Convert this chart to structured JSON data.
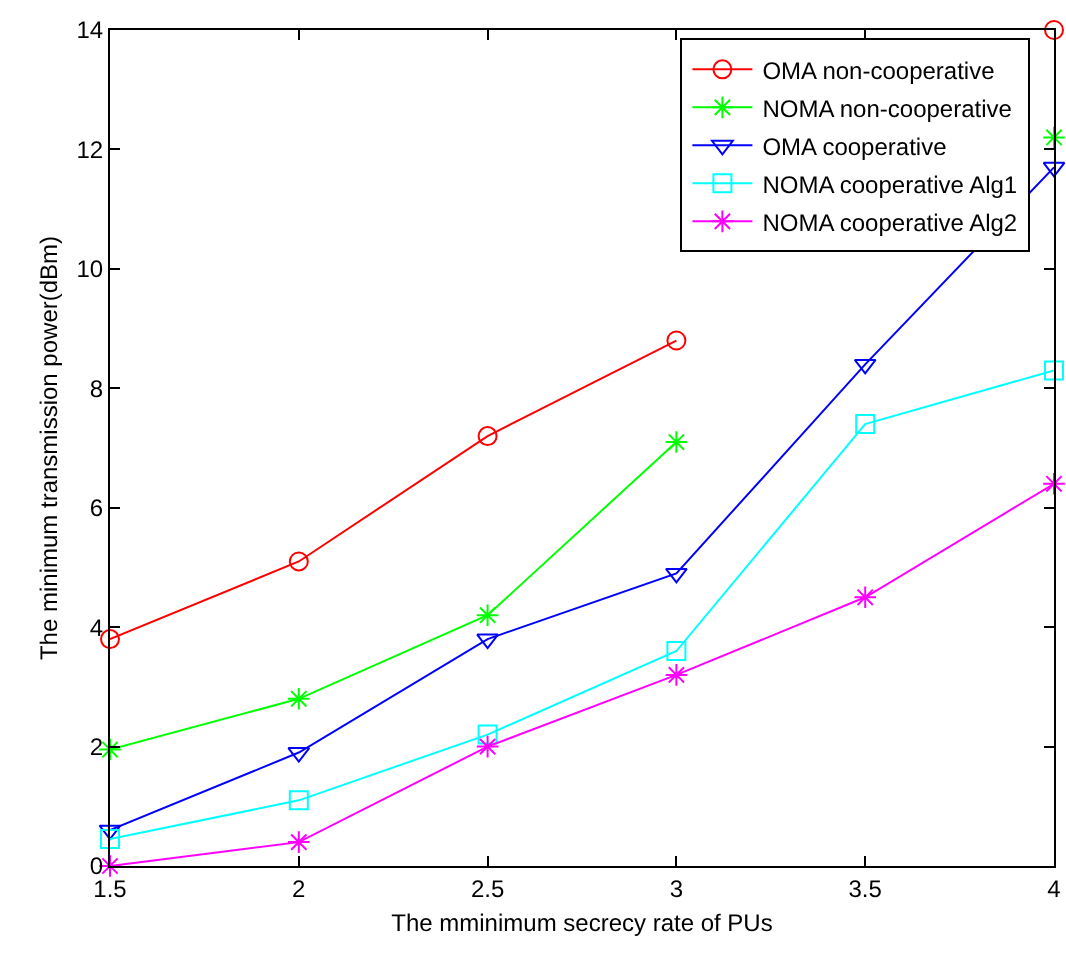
{
  "chart_data": {
    "type": "line",
    "xlabel": "The mminimum secrecy rate of PUs",
    "ylabel": "The minimum transmission power(dBm)",
    "x": [
      1.5,
      2,
      2.5,
      3,
      3.5,
      4
    ],
    "xlim": [
      1.5,
      4
    ],
    "xticks": [
      1.5,
      2,
      2.5,
      3,
      3.5,
      4
    ],
    "ylim": [
      0,
      14
    ],
    "yticks": [
      0,
      2,
      4,
      6,
      8,
      10,
      12,
      14
    ],
    "grid": false,
    "legend": "top right",
    "line_style": "solid",
    "series": [
      {
        "name": "OMA non-cooperative",
        "color": "#ff0000",
        "marker": "circle",
        "values": [
          3.8,
          5.1,
          7.2,
          8.8,
          null,
          14
        ]
      },
      {
        "name": "NOMA non-cooperative",
        "color": "#00ff00",
        "marker": "cross",
        "values": [
          1.95,
          2.8,
          4.2,
          7.1,
          null,
          12.2
        ]
      },
      {
        "name": "OMA cooperative",
        "color": "#0000ff",
        "marker": "triangle",
        "values": [
          0.6,
          1.9,
          3.8,
          4.9,
          8.4,
          11.7
        ]
      },
      {
        "name": "NOMA cooperative Alg1",
        "color": "#00ffff",
        "marker": "square",
        "values": [
          0.45,
          1.1,
          2.2,
          3.6,
          7.4,
          8.3
        ]
      },
      {
        "name": "NOMA cooperative Alg2",
        "color": "#ff00ff",
        "marker": "cross",
        "values": [
          0,
          0.4,
          2,
          3.2,
          4.5,
          6.4
        ]
      }
    ]
  }
}
